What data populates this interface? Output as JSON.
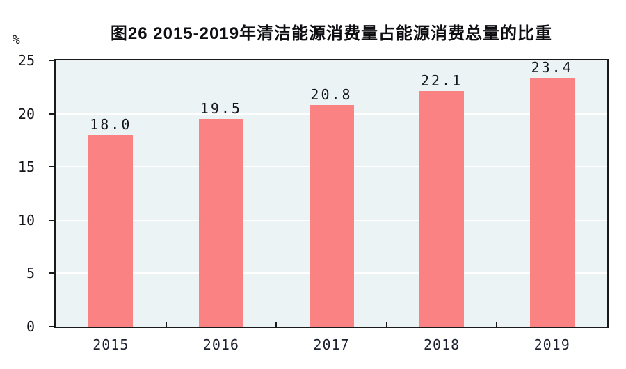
{
  "figure": {
    "background": "#FFFFFF"
  },
  "chart_data": {
    "type": "bar",
    "title": "图26  2015-2019年清洁能源消费量占能源消费总量的比重",
    "categories": [
      "2015",
      "2016",
      "2017",
      "2018",
      "2019"
    ],
    "values": [
      18.0,
      19.5,
      20.8,
      22.1,
      23.4
    ],
    "value_labels": [
      "18.0",
      "19.5",
      "20.8",
      "22.1",
      "23.4"
    ],
    "xlabel": "",
    "ylabel": "%",
    "ylim": [
      0,
      25
    ],
    "yticks": [
      0,
      5,
      10,
      15,
      20,
      25
    ],
    "grid": true,
    "legend": "none",
    "colors": {
      "bar": "#FB8282",
      "plot_background": "#ECF3F5",
      "gridline": "#FFFFFF",
      "axis": "#1A1A1A",
      "text": "#15151D"
    }
  }
}
